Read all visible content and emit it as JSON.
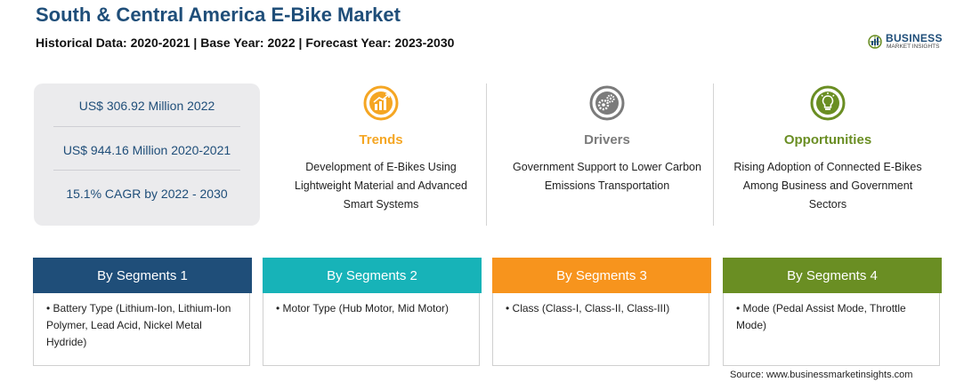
{
  "header": {
    "title": "South & Central America E-Bike Market",
    "subtitle": "Historical Data: 2020-2021 | Base Year: 2022 | Forecast Year: 2023-2030"
  },
  "logo": {
    "word": "BUSINESS",
    "sub": "MARKET INSIGHTS"
  },
  "stats": [
    "US$ 306.92 Million 2022",
    "US$ 944.16 Million 2020-2021",
    "15.1% CAGR by 2022 - 2030"
  ],
  "columns": [
    {
      "title": "Trends",
      "color": "#f5a623",
      "icon": "trend-chart-icon",
      "text": "Development of E-Bikes Using Lightweight Material and Advanced Smart Systems"
    },
    {
      "title": "Drivers",
      "color": "#7b7b7b",
      "icon": "gears-icon",
      "text": "Government Support to Lower Carbon Emissions Transportation"
    },
    {
      "title": "Opportunities",
      "color": "#6a8e23",
      "icon": "lightbulb-icon",
      "text": "Rising Adoption of Connected E-Bikes Among Business and Government Sectors"
    }
  ],
  "segments": [
    {
      "title": "By Segments 1",
      "color": "#1f4e79",
      "text": "• Battery Type (Lithium-Ion, Lithium-Ion Polymer, Lead Acid, Nickel Metal Hydride)"
    },
    {
      "title": "By Segments 2",
      "color": "#17b3b8",
      "text": "• Motor Type (Hub Motor, Mid Motor)"
    },
    {
      "title": "By Segments 3",
      "color": "#f7941d",
      "text": "• Class (Class-I, Class-II, Class-III)"
    },
    {
      "title": "By Segments 4",
      "color": "#6a8e23",
      "text": "• Mode (Pedal Assist Mode, Throttle Mode)"
    }
  ],
  "source": "Source: www.businessmarketinsights.com"
}
